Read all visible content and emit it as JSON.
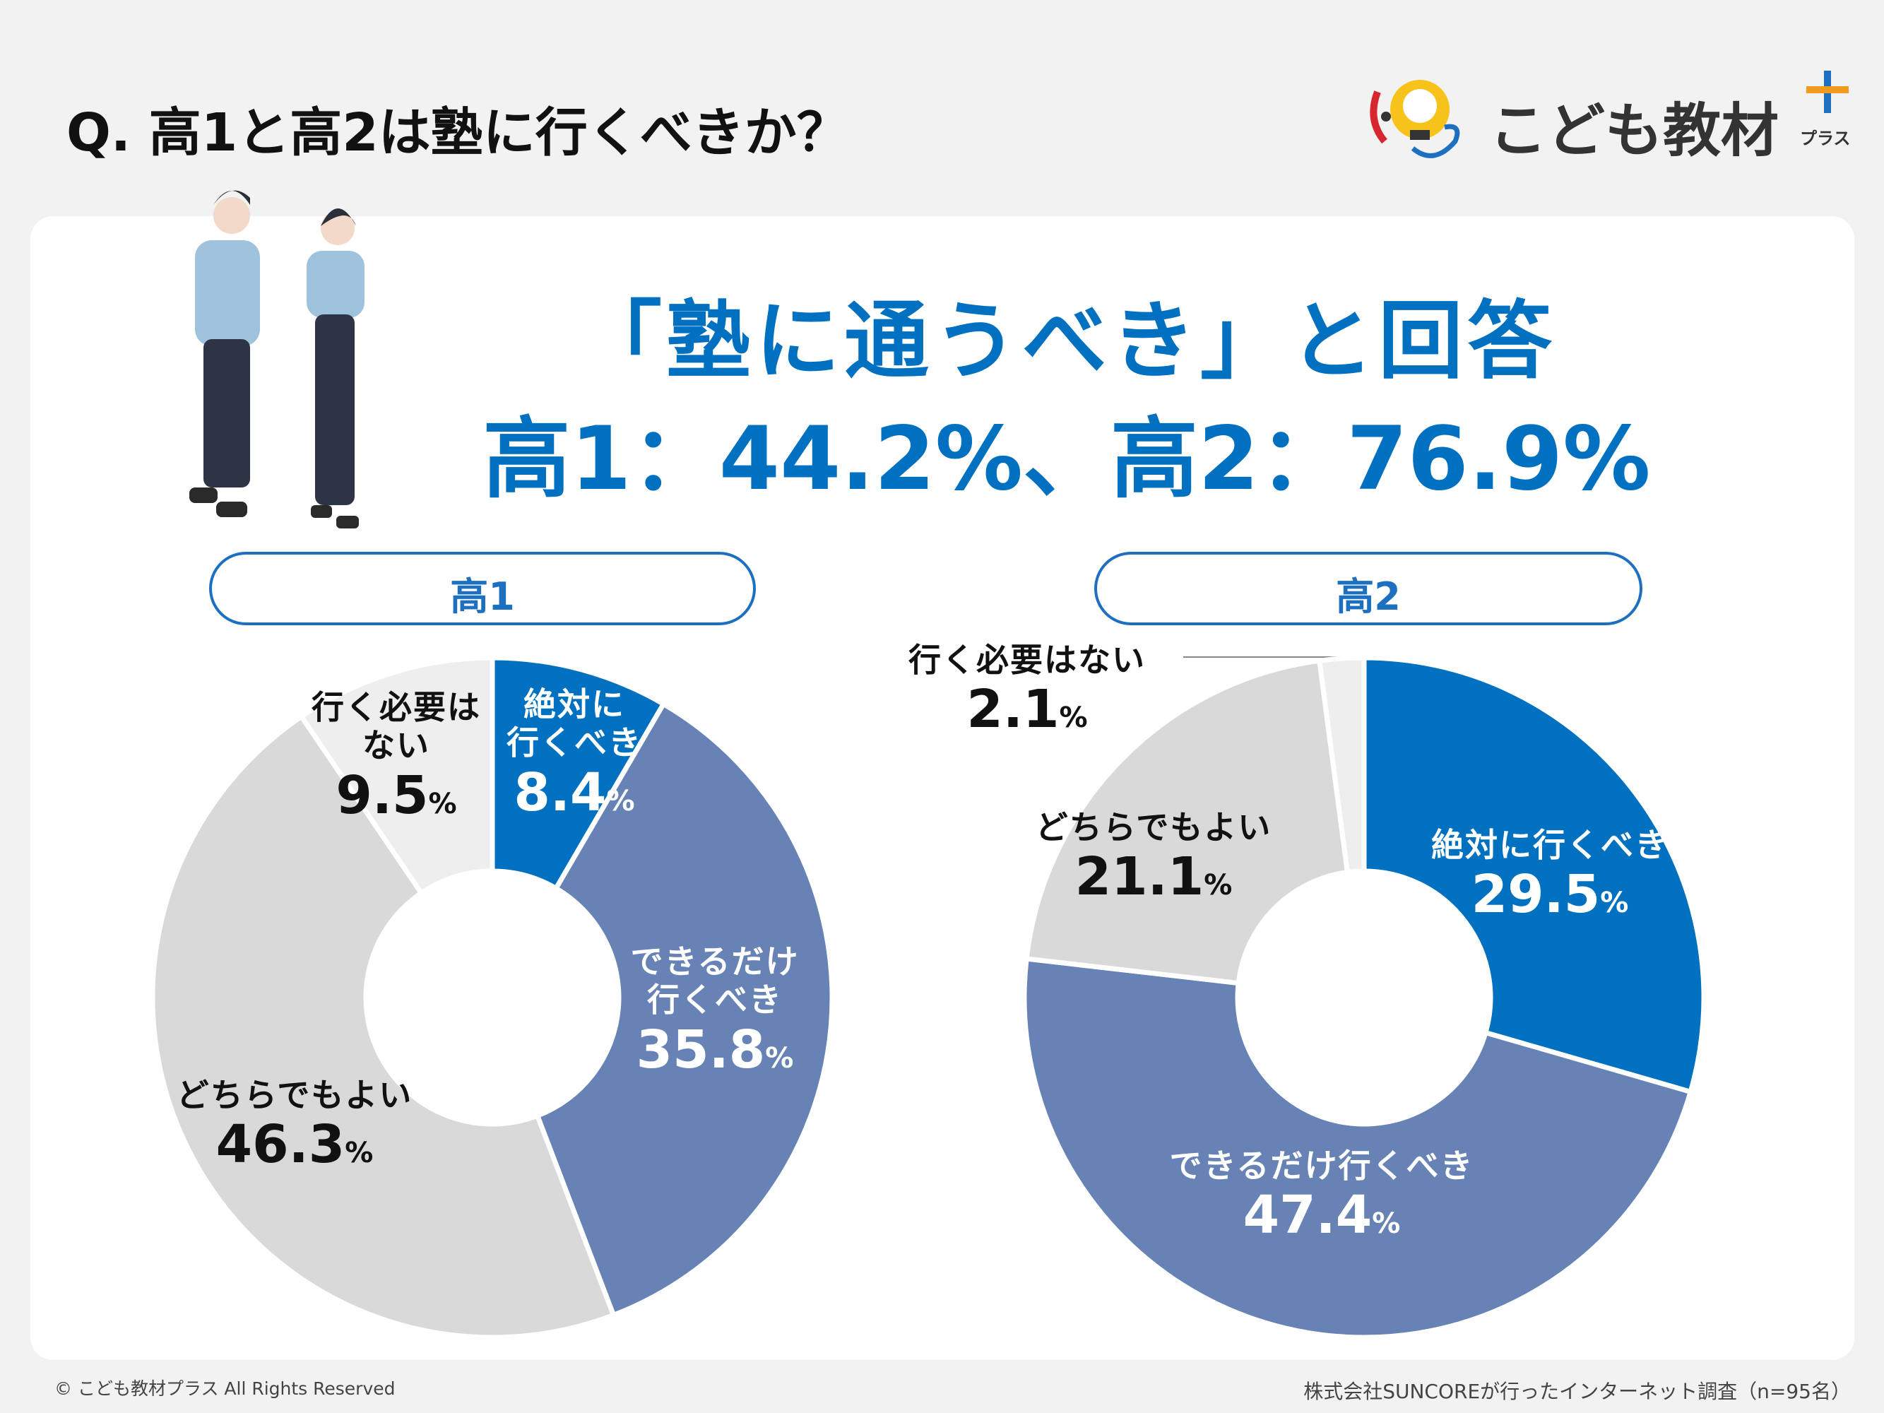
{
  "header": {
    "title": "Q. 高1と高2は塾に行くべきか？",
    "logo": "こども教材",
    "logo_sub": "プラス"
  },
  "headline": {
    "line1": "「塾に通うべき」と回答",
    "line2": "高1：44.2%、高2：76.9%"
  },
  "chart_data": [
    {
      "type": "pie",
      "donut": true,
      "title": "高1",
      "categories": [
        "絶対に\n行くべき",
        "できるだけ\n行くべき",
        "どちらでもよい",
        "行く必要は\nない"
      ],
      "values": [
        8.4,
        35.8,
        46.3,
        9.5
      ],
      "value_labels": [
        "8.4%",
        "35.8%",
        "46.3%",
        "9.5%"
      ],
      "colors": [
        "#0070c0",
        "#6782b4",
        "#d9d9d9",
        "#eeeeee"
      ]
    },
    {
      "type": "pie",
      "donut": true,
      "title": "高2",
      "categories": [
        "絶対に行くべき",
        "できるだけ行くべき",
        "どちらでもよい",
        "行く必要はない"
      ],
      "values": [
        29.5,
        47.4,
        21.1,
        2.1
      ],
      "value_labels": [
        "29.5%",
        "47.4%",
        "21.1%",
        "2.1%"
      ],
      "colors": [
        "#0070c0",
        "#6782b4",
        "#d9d9d9",
        "#eeeeee"
      ]
    }
  ],
  "footer": {
    "copyright": "© こども教材プラス All Rights Reserved",
    "source": "株式会社SUNCOREが行ったインターネット調査（n=95名）"
  }
}
